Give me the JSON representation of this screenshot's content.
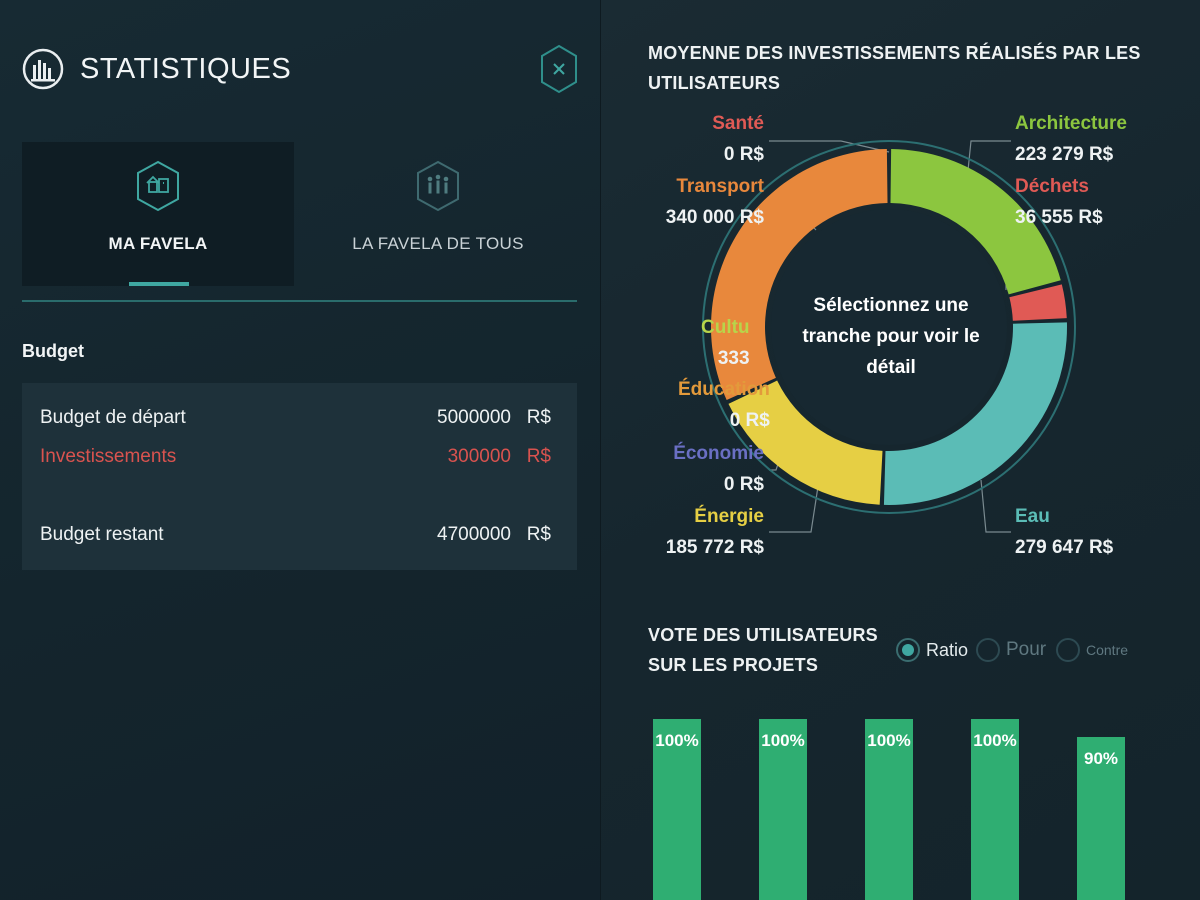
{
  "app": {
    "title": "STATISTIQUES",
    "logo_icon": "bars-chart-circle-icon",
    "close_icon": "close-hexagon-icon"
  },
  "tabs": [
    {
      "label": "MA FAVELA",
      "icon": "house-hexagon-icon",
      "active": true
    },
    {
      "label": "LA FAVELA DE TOUS",
      "icon": "people-hexagon-icon",
      "active": false
    }
  ],
  "budget": {
    "title": "Budget",
    "rows": [
      {
        "label": "Budget de départ",
        "value": "5000000",
        "currency": "R$"
      },
      {
        "label": "Investissements",
        "value": "300000",
        "currency": "R$"
      },
      {
        "label": "Budget restant",
        "value": "4700000",
        "currency": "R$"
      }
    ],
    "invest_color": "#d9534f"
  },
  "donut": {
    "title": "MOYENNE DES INVESTISSEMENTS RÉALISÉS PAR LES UTILISATEURS",
    "center_text": "Sélectionnez une tranche pour voir le détail",
    "labels": {
      "sante": {
        "category": "Santé",
        "amount": "0 R$"
      },
      "transport": {
        "category": "Transport",
        "amount": "340 000 R$"
      },
      "culture": {
        "category": "Cultu",
        "amount": "333"
      },
      "education": {
        "category": "Éducation",
        "amount": "0 R$"
      },
      "economie": {
        "category": "Économie",
        "amount": "0 R$"
      },
      "energie": {
        "category": "Énergie",
        "amount": "185 772 R$"
      },
      "architecture": {
        "category": "Architecture",
        "amount": "223 279 R$"
      },
      "dechets": {
        "category": "Déchets",
        "amount": "36 555 R$"
      },
      "eau": {
        "category": "Eau",
        "amount": "279 647 R$"
      }
    }
  },
  "chart_data": [
    {
      "type": "pie",
      "title": "MOYENNE DES INVESTISSEMENTS RÉALISÉS PAR LES UTILISATEURS",
      "series": [
        {
          "name": "Architecture",
          "value": 223279,
          "color": "#8cc63f"
        },
        {
          "name": "Déchets",
          "value": 36555,
          "color": "#e05a55"
        },
        {
          "name": "Eau",
          "value": 279647,
          "color": "#5bbcb6"
        },
        {
          "name": "Énergie",
          "value": 185772,
          "color": "#e6cf44"
        },
        {
          "name": "Économie",
          "value": 0,
          "color": "#6a6fc4"
        },
        {
          "name": "Éducation",
          "value": 0,
          "color": "#e39a3b"
        },
        {
          "name": "Transport",
          "value": 340000,
          "color": "#e8883c"
        },
        {
          "name": "Santé",
          "value": 0,
          "color": "#e05a55"
        }
      ]
    },
    {
      "type": "bar",
      "title": "VOTE DES UTILISATEURS SUR LES PROJETS",
      "values": [
        100,
        100,
        100,
        100,
        90
      ],
      "labels": [
        "100%",
        "100%",
        "100%",
        "100%",
        "90%"
      ],
      "ylim": [
        0,
        100
      ],
      "color": "#2fae72"
    }
  ],
  "votes": {
    "title": "VOTE DES UTILISATEURS SUR LES PROJETS",
    "options": {
      "ratio": "Ratio",
      "pour": "Pour",
      "contre": "Contre"
    },
    "selected": "ratio"
  }
}
